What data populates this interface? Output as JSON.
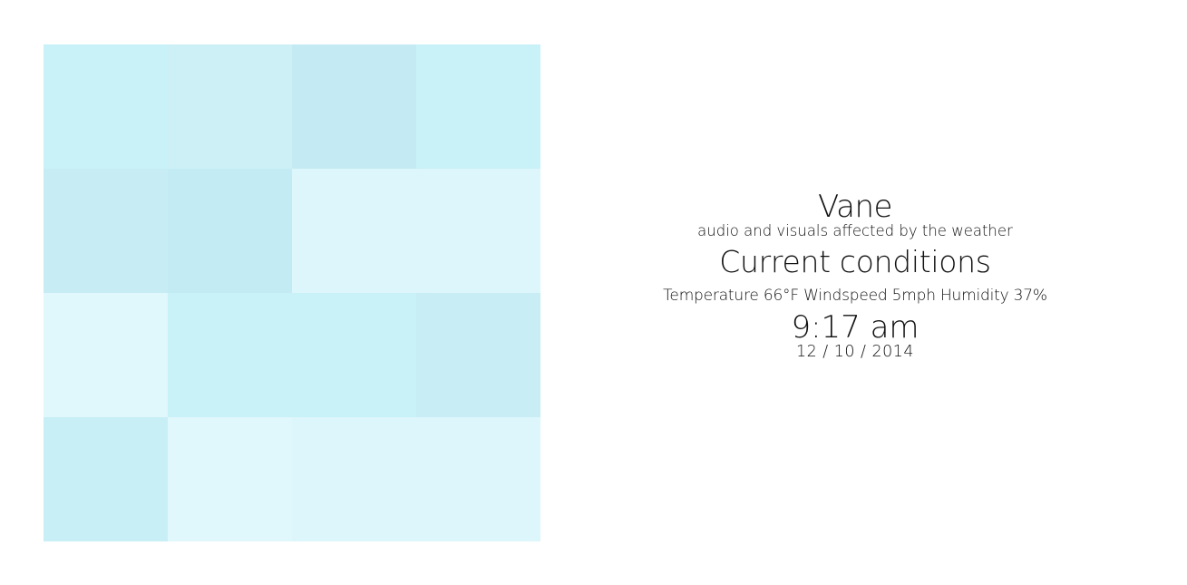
{
  "visual": {
    "tiles": [
      "#c9f1f8",
      "#cdf0f6",
      "#c4ebf3",
      "#c9f1f8",
      "#c8ecf3",
      "#c3ebf3",
      "#ddf6fb",
      "#ddf6fb",
      "#e0f7fc",
      "#c9f1f8",
      "#c9f1f8",
      "#c8edf4",
      "#c8eff6",
      "#e0f7fc",
      "#ddf6fb",
      "#ddf6fb"
    ]
  },
  "info": {
    "title": "Vane",
    "subtitle": "audio and visuals affected by the weather",
    "heading": "Current conditions",
    "stats": "Temperature 66°F Windspeed 5mph Humidity 37%",
    "time": "9:17 am",
    "date": "12 / 10 / 2014"
  }
}
